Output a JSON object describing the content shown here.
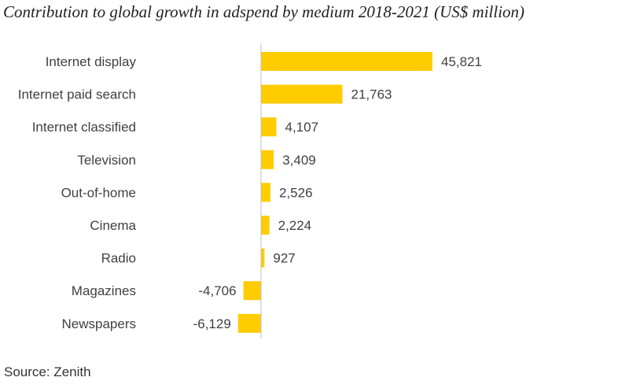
{
  "title": "Contribution to global growth in adspend by medium 2018-2021 (US$ million)",
  "source": "Source: Zenith",
  "chart_data": {
    "type": "bar",
    "orientation": "horizontal",
    "title": "Contribution to global growth in adspend by medium 2018-2021 (US$ million)",
    "xlabel": "",
    "ylabel": "",
    "grid": false,
    "legend": "none",
    "bar_color": "#FFCC00",
    "axis_color": "#BFBFBF",
    "categories": [
      "Internet display",
      "Internet paid search",
      "Internet classified",
      "Television",
      "Out-of-home",
      "Cinema",
      "Radio",
      "Magazines",
      "Newspapers"
    ],
    "values": [
      45821,
      21763,
      4107,
      3409,
      2526,
      2224,
      927,
      -4706,
      -6129
    ],
    "value_labels": [
      "45,821",
      "21,763",
      "4,107",
      "3,409",
      "2,526",
      "2,224",
      "927",
      "-4,706",
      "-6,129"
    ],
    "xlim": [
      -6129,
      45821
    ]
  }
}
